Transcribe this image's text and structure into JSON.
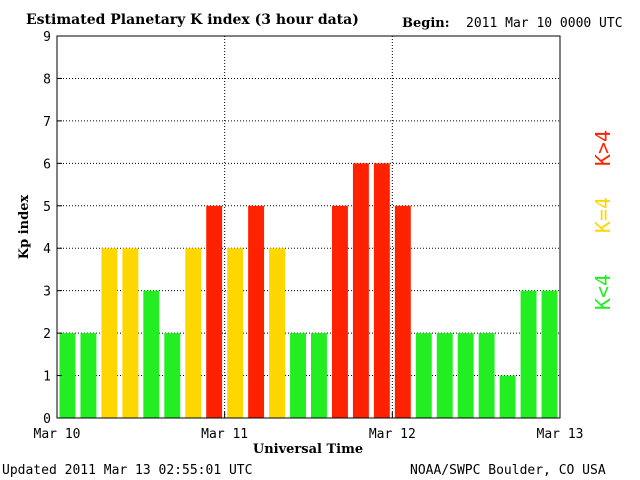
{
  "header": {
    "title": "Estimated Planetary K index (3 hour data)",
    "begin_label": "Begin:",
    "begin_value": "2011 Mar 10 0000 UTC"
  },
  "footer": {
    "updated": "Updated 2011 Mar 13 02:55:01 UTC",
    "credit": "NOAA/SWPC Boulder, CO USA"
  },
  "legend": {
    "high": "K>4",
    "mid": "K=4",
    "low": "K<4"
  },
  "colors": {
    "low": "#22ee22",
    "mid": "#ffd700",
    "high": "#ff2200"
  },
  "chart_data": {
    "type": "bar",
    "title": "Estimated Planetary K index (3 hour data)",
    "xlabel": "Universal Time",
    "ylabel": "Kp index",
    "ylim": [
      0,
      9
    ],
    "yticks": [
      0,
      1,
      2,
      3,
      4,
      5,
      6,
      7,
      8,
      9
    ],
    "xticks": [
      "Mar 10",
      "Mar 11",
      "Mar 12",
      "Mar 13"
    ],
    "grid": true,
    "bin_hours": 3,
    "values": [
      2,
      2,
      4,
      4,
      3,
      2,
      4,
      5,
      4,
      5,
      4,
      2,
      2,
      5,
      6,
      6,
      5,
      2,
      2,
      2,
      2,
      1,
      3,
      3
    ]
  }
}
